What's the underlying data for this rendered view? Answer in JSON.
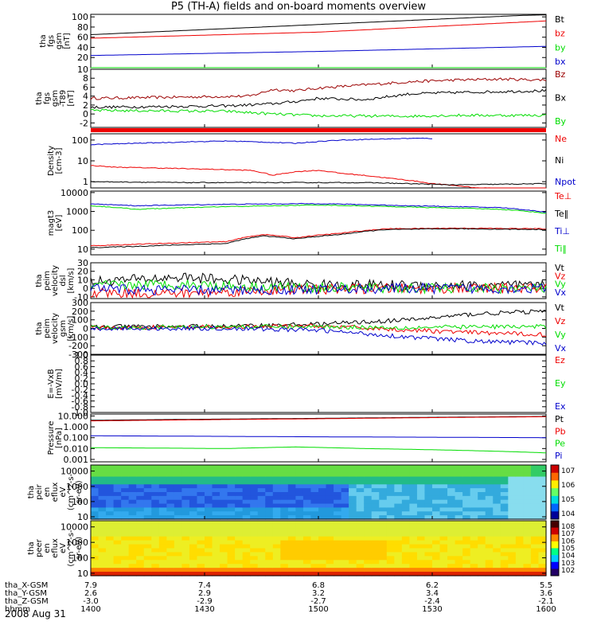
{
  "title": "P5 (TH-A) fields and on-board moments overview",
  "date_label": "2008 Aug 31",
  "colors": {
    "black": "#000000",
    "red": "#ee0000",
    "darkred": "#9b0000",
    "green": "#00dd00",
    "blue": "#0000cc"
  },
  "chart_data": [
    {
      "type": "line",
      "id": "fgs",
      "ylabel": [
        "tha",
        "fgs",
        "gsm",
        "[nT]"
      ],
      "yticks": [
        "100",
        "80",
        "60",
        "40",
        "20"
      ],
      "ytick_values": [
        100,
        80,
        60,
        40,
        20
      ],
      "ylim": [
        0,
        105
      ],
      "yscale": "linear",
      "series": [
        {
          "name": "Bt",
          "color": "#000000",
          "x": [
            0,
            0.5,
            0.95,
            1
          ],
          "y": [
            65,
            85,
            103,
            104
          ]
        },
        {
          "name": "bz",
          "color": "#ee0000",
          "x": [
            0,
            0.5,
            1
          ],
          "y": [
            58,
            70,
            92
          ]
        },
        {
          "name": "by",
          "color": "#00dd00",
          "x": [
            0,
            0.8,
            1
          ],
          "y": [
            0,
            0,
            0
          ]
        },
        {
          "name": "bx",
          "color": "#0000cc",
          "x": [
            0,
            0.5,
            1
          ],
          "y": [
            24,
            32,
            42
          ]
        }
      ]
    },
    {
      "type": "line",
      "id": "fgs_dsl",
      "ylabel": [
        "tha",
        "fgs",
        "gsm",
        "-T89",
        "[nT]"
      ],
      "yticks": [
        "10",
        "8",
        "6",
        "4",
        "2",
        "0",
        "-2"
      ],
      "ytick_values": [
        10,
        8,
        6,
        4,
        2,
        0,
        -2
      ],
      "ylim": [
        -3,
        10
      ],
      "yscale": "linear",
      "series": [
        {
          "name": "Bz",
          "color": "#9b0000",
          "x": [
            0,
            0.35,
            0.4,
            0.45,
            0.5,
            0.6,
            0.7,
            0.8,
            0.9,
            1
          ],
          "y": [
            3.5,
            4,
            5.5,
            5.2,
            5.8,
            6.5,
            7.2,
            7.6,
            7.8,
            7.6
          ]
        },
        {
          "name": "Bx",
          "color": "#000000",
          "x": [
            0,
            0.3,
            0.4,
            0.45,
            0.5,
            0.6,
            0.7,
            0.8,
            0.9,
            1
          ],
          "y": [
            1.5,
            1.8,
            2.3,
            2.8,
            3.5,
            3.2,
            4.5,
            4.8,
            5,
            5.2
          ]
        },
        {
          "name": "By",
          "color": "#00dd00",
          "x": [
            0,
            0.3,
            0.4,
            0.5,
            0.7,
            0.8,
            1
          ],
          "y": [
            0.8,
            0.6,
            0,
            -0.4,
            -0.5,
            -0.3,
            -0.3
          ]
        }
      ]
    },
    {
      "type": "line",
      "id": "density",
      "ylabel": [
        "Density",
        "[cm-3]"
      ],
      "yticks": [
        "100",
        "10",
        "1"
      ],
      "ytick_values": [
        100,
        10,
        1
      ],
      "ylim": [
        0.5,
        200
      ],
      "yscale": "log",
      "series": [
        {
          "name": "Ne",
          "color": "#ee0000",
          "x": [
            0,
            0.05,
            0.35,
            0.4,
            0.45,
            0.5,
            0.55,
            0.65,
            0.75,
            0.85,
            1
          ],
          "y": [
            6,
            5,
            3.5,
            2,
            3,
            3.5,
            2.5,
            1.5,
            0.8,
            0.5,
            0.4
          ]
        },
        {
          "name": "Ni",
          "color": "#000000",
          "x": [
            0,
            0.2,
            0.4,
            0.6,
            0.8,
            1
          ],
          "y": [
            1,
            0.9,
            0.9,
            0.9,
            0.7,
            0.8
          ]
        },
        {
          "name": "Npot",
          "color": "#0000cc",
          "x": [
            0,
            0.3,
            0.45,
            0.55,
            0.7,
            0.75
          ],
          "y": [
            60,
            90,
            70,
            100,
            120,
            120
          ]
        }
      ]
    },
    {
      "type": "line",
      "id": "temp",
      "ylabel": [
        "magt3",
        "[eV]"
      ],
      "yticks": [
        "10000",
        "1000",
        "100",
        "10"
      ],
      "ytick_values": [
        10000,
        1000,
        100,
        10
      ],
      "ylim": [
        5,
        12000
      ],
      "yscale": "log",
      "series": [
        {
          "name": "Te⊥",
          "color": "#ee0000",
          "x": [
            0,
            0.1,
            0.3,
            0.38,
            0.45,
            0.55,
            0.65,
            0.8,
            1
          ],
          "y": [
            15,
            18,
            25,
            60,
            40,
            70,
            120,
            130,
            120
          ]
        },
        {
          "name": "Te‖",
          "color": "#000000",
          "x": [
            0,
            0.1,
            0.3,
            0.38,
            0.45,
            0.55,
            0.65,
            0.8,
            1
          ],
          "y": [
            12,
            14,
            20,
            50,
            35,
            60,
            110,
            120,
            110
          ]
        },
        {
          "name": "Ti⊥",
          "color": "#0000cc",
          "x": [
            0,
            0.1,
            0.3,
            0.5,
            0.7,
            0.9,
            1
          ],
          "y": [
            2500,
            2000,
            2400,
            2600,
            2000,
            1600,
            900
          ]
        },
        {
          "name": "Ti‖",
          "color": "#00dd00",
          "x": [
            0,
            0.1,
            0.3,
            0.5,
            0.7,
            0.9,
            1
          ],
          "y": [
            2000,
            1300,
            1800,
            2200,
            1700,
            1300,
            800
          ]
        }
      ]
    },
    {
      "type": "line",
      "id": "peim_dsl",
      "ylabel": [
        "tha",
        "peim",
        "velocity",
        "dsl",
        "[km/s]"
      ],
      "yticks": [
        "30",
        "20",
        "10",
        "0",
        "-10"
      ],
      "ytick_values": [
        30,
        20,
        10,
        0,
        -10
      ],
      "ylim": [
        -12,
        30
      ],
      "yscale": "linear",
      "series": [
        {
          "name": "Vt",
          "color": "#000000",
          "x": [
            0,
            0.2,
            0.35,
            0.5,
            0.7,
            1
          ],
          "y": [
            8,
            13,
            9,
            4,
            4,
            3
          ]
        },
        {
          "name": "Vz",
          "color": "#ee0000",
          "x": [
            0,
            0.2,
            0.35,
            0.5,
            0.7,
            1
          ],
          "y": [
            -5,
            -6,
            -3,
            -1,
            0,
            0
          ]
        },
        {
          "name": "Vy",
          "color": "#00dd00",
          "x": [
            0,
            0.2,
            0.35,
            0.5,
            0.7,
            1
          ],
          "y": [
            3,
            5,
            2,
            1,
            0,
            0
          ]
        },
        {
          "name": "Vx",
          "color": "#0000cc",
          "x": [
            0,
            0.2,
            0.35,
            0.5,
            0.7,
            1
          ],
          "y": [
            -1,
            -2,
            -2,
            -1,
            0,
            0
          ]
        }
      ]
    },
    {
      "type": "line",
      "id": "peim_gsm",
      "ylabel": [
        "tha",
        "peim",
        "velocity",
        "gsm",
        "[km/s]"
      ],
      "yticks": [
        "300",
        "200",
        "100",
        "0",
        "-100",
        "-200",
        "-300"
      ],
      "ytick_values": [
        300,
        200,
        100,
        0,
        -100,
        -200,
        -300
      ],
      "ylim": [
        -300,
        300
      ],
      "yscale": "linear",
      "series": [
        {
          "name": "Vt",
          "color": "#000000",
          "x": [
            0,
            0.3,
            0.5,
            0.7,
            0.85,
            1
          ],
          "y": [
            20,
            25,
            50,
            100,
            170,
            200
          ]
        },
        {
          "name": "Vz",
          "color": "#ee0000",
          "x": [
            0,
            0.3,
            0.5,
            0.7,
            0.85,
            1
          ],
          "y": [
            10,
            15,
            30,
            -20,
            -50,
            -70
          ]
        },
        {
          "name": "Vy",
          "color": "#00dd00",
          "x": [
            0,
            0.3,
            0.5,
            0.7,
            0.85,
            1
          ],
          "y": [
            10,
            20,
            20,
            10,
            20,
            20
          ]
        },
        {
          "name": "Vx",
          "color": "#0000cc",
          "x": [
            0,
            0.3,
            0.5,
            0.7,
            0.85,
            1
          ],
          "y": [
            0,
            0,
            -20,
            -100,
            -150,
            -170
          ]
        }
      ]
    },
    {
      "type": "line",
      "id": "efield",
      "ylabel": [
        "E=-VxB",
        "[mV/m]"
      ],
      "yticks": [
        "1.0",
        "0.8",
        "0.6",
        "0.4",
        "0.2",
        "0.0",
        "-0.2",
        "-0.4",
        "-0.6",
        "-0.8",
        "-1.0"
      ],
      "ytick_values": [
        1,
        0.8,
        0.6,
        0.4,
        0.2,
        0,
        -0.2,
        -0.4,
        -0.6,
        -0.8,
        -1
      ],
      "ylim": [
        -1,
        1
      ],
      "yscale": "linear",
      "series": [
        {
          "name": "Ez",
          "color": "#ee0000",
          "x": [],
          "y": []
        },
        {
          "name": "Ey",
          "color": "#00dd00",
          "x": [],
          "y": []
        },
        {
          "name": "Ex",
          "color": "#0000cc",
          "x": [],
          "y": []
        }
      ]
    },
    {
      "type": "line",
      "id": "pressure",
      "ylabel": [
        "Pressure",
        "[nPa]"
      ],
      "yticks": [
        "10.000",
        "1.000",
        "0.100",
        "0.010",
        "0.001"
      ],
      "ytick_values": [
        10,
        1,
        0.1,
        0.01,
        0.001
      ],
      "ylim": [
        0.0006,
        15
      ],
      "yscale": "log",
      "series": [
        {
          "name": "Pt",
          "color": "#000000",
          "x": [
            0,
            0.5,
            1
          ],
          "y": [
            4,
            6,
            9
          ]
        },
        {
          "name": "Pb",
          "color": "#ee0000",
          "x": [
            0,
            0.5,
            1
          ],
          "y": [
            3.5,
            5.5,
            8.5
          ]
        },
        {
          "name": "Pe",
          "color": "#00dd00",
          "x": [
            0,
            0.3,
            0.45,
            0.6,
            0.8,
            1
          ],
          "y": [
            0.012,
            0.01,
            0.014,
            0.01,
            0.007,
            0.004
          ]
        },
        {
          "name": "Pi",
          "color": "#0000cc",
          "x": [
            0,
            0.5,
            1
          ],
          "y": [
            0.15,
            0.12,
            0.1
          ]
        }
      ]
    },
    {
      "type": "heatmap",
      "id": "peir",
      "ylabel": [
        "tha",
        "peir",
        "en",
        "eflux",
        "eV",
        "(cm^2-s-",
        "sr-eV)"
      ],
      "yticks": [
        "10000",
        "1000",
        "100",
        "10"
      ],
      "ytick_values": [
        10000,
        1000,
        100,
        10
      ],
      "ylim": [
        7,
        25000
      ],
      "yscale": "log",
      "colorbar_labels": [
        "10^7",
        "10^6",
        "10^5",
        "10^4"
      ]
    },
    {
      "type": "heatmap",
      "id": "peer",
      "ylabel": [
        "tha",
        "peer",
        "en",
        "eflux",
        "eV",
        "(cm^2-s-",
        "sr-eV)"
      ],
      "yticks": [
        "10000",
        "1000",
        "100",
        "10"
      ],
      "ytick_values": [
        10000,
        1000,
        100,
        10
      ],
      "ylim": [
        7,
        25000
      ],
      "yscale": "log",
      "colorbar_labels": [
        "10^8",
        "10^7",
        "10^6",
        "10^5",
        "10^4",
        "10^3",
        "10^2"
      ]
    }
  ],
  "x_axis": {
    "row_labels": [
      "tha_X-GSM",
      "tha_Y-GSM",
      "tha_Z-GSM",
      "hhmm"
    ],
    "ticks": [
      {
        "x": 0,
        "values": [
          "7.9",
          "2.6",
          "-3.0",
          "1400"
        ]
      },
      {
        "x": 0.25,
        "values": [
          "7.4",
          "2.9",
          "-2.9",
          "1430"
        ]
      },
      {
        "x": 0.5,
        "values": [
          "6.8",
          "3.2",
          "-2.7",
          "1500"
        ]
      },
      {
        "x": 0.75,
        "values": [
          "6.2",
          "3.4",
          "-2.4",
          "1530"
        ]
      },
      {
        "x": 1,
        "values": [
          "5.5",
          "3.6",
          "-2.1",
          "1600"
        ]
      }
    ]
  }
}
